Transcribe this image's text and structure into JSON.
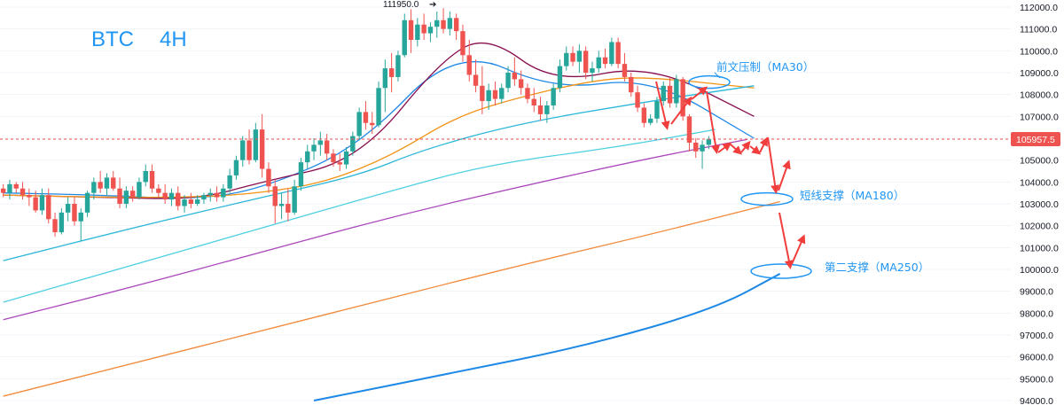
{
  "chart_data": {
    "type": "candlestick",
    "title_symbol": "BTC",
    "title_timeframe": "4H",
    "y_axis": {
      "min": 94000,
      "max": 112000,
      "step": 1000,
      "ticks": [
        "112000.0",
        "111000.0",
        "110000.0",
        "109000.0",
        "108000.0",
        "107000.0",
        "106000.0",
        "105000.0",
        "104000.0",
        "103000.0",
        "102000.0",
        "101000.0",
        "100000.0",
        "99000.0",
        "98000.0",
        "97000.0",
        "96000.0",
        "95000.0",
        "94000.0"
      ]
    },
    "current_price": 105957.5,
    "current_price_label": "105957.5",
    "high_marker": {
      "value": 111950,
      "label": "111950.0"
    },
    "candles": [
      [
        103700,
        103900,
        103300,
        103500
      ],
      [
        103500,
        104100,
        103200,
        103900
      ],
      [
        103900,
        104000,
        103500,
        103700
      ],
      [
        103700,
        104000,
        103200,
        103400
      ],
      [
        103400,
        103700,
        102900,
        103300
      ],
      [
        103300,
        103600,
        102600,
        102700
      ],
      [
        102700,
        103700,
        102500,
        103400
      ],
      [
        103400,
        103700,
        102100,
        102300
      ],
      [
        102300,
        102600,
        101500,
        101700
      ],
      [
        101700,
        102800,
        101600,
        102600
      ],
      [
        102600,
        103300,
        102200,
        103000
      ],
      [
        103000,
        103300,
        102000,
        102200
      ],
      [
        102200,
        102800,
        101300,
        102600
      ],
      [
        102600,
        103600,
        102400,
        103500
      ],
      [
        103500,
        104200,
        103200,
        104000
      ],
      [
        104000,
        104500,
        103500,
        103700
      ],
      [
        103700,
        104400,
        103400,
        104200
      ],
      [
        104200,
        104500,
        103600,
        103700
      ],
      [
        103700,
        104200,
        102800,
        103000
      ],
      [
        103000,
        103800,
        102800,
        103600
      ],
      [
        103600,
        103800,
        103100,
        103300
      ],
      [
        103300,
        104200,
        103200,
        104000
      ],
      [
        104000,
        104800,
        103800,
        104500
      ],
      [
        104500,
        104800,
        103500,
        103700
      ],
      [
        103700,
        103900,
        103300,
        103500
      ],
      [
        103500,
        103900,
        103000,
        103200
      ],
      [
        103200,
        103700,
        102900,
        103500
      ],
      [
        103500,
        103800,
        102700,
        102900
      ],
      [
        102900,
        103400,
        102600,
        103200
      ],
      [
        103200,
        103500,
        102800,
        103000
      ],
      [
        103000,
        103400,
        102900,
        103200
      ],
      [
        103200,
        103500,
        103000,
        103400
      ],
      [
        103400,
        103700,
        103100,
        103500
      ],
      [
        103500,
        103800,
        103100,
        103300
      ],
      [
        103300,
        103900,
        103100,
        103700
      ],
      [
        103700,
        104600,
        103500,
        104300
      ],
      [
        104300,
        105200,
        104100,
        105000
      ],
      [
        105000,
        106100,
        104700,
        105900
      ],
      [
        105900,
        106400,
        104800,
        105000
      ],
      [
        105000,
        106700,
        104900,
        106400
      ],
      [
        106400,
        107100,
        104200,
        104600
      ],
      [
        104600,
        104900,
        103500,
        103800
      ],
      [
        103800,
        104100,
        102100,
        102900
      ],
      [
        102900,
        103500,
        102300,
        103000
      ],
      [
        103000,
        103700,
        102200,
        102600
      ],
      [
        102600,
        104100,
        102500,
        103800
      ],
      [
        103800,
        105100,
        103600,
        104900
      ],
      [
        104900,
        105700,
        104600,
        105400
      ],
      [
        105400,
        106000,
        105000,
        105700
      ],
      [
        105700,
        106300,
        105200,
        105900
      ],
      [
        105900,
        106200,
        105000,
        105300
      ],
      [
        105300,
        105500,
        104700,
        104900
      ],
      [
        104900,
        105300,
        104500,
        104800
      ],
      [
        104800,
        105600,
        104600,
        105400
      ],
      [
        105400,
        106300,
        105200,
        106100
      ],
      [
        106100,
        107400,
        105900,
        107200
      ],
      [
        107200,
        107700,
        106400,
        106700
      ],
      [
        106700,
        107200,
        106200,
        106600
      ],
      [
        106600,
        108600,
        106500,
        108300
      ],
      [
        108300,
        109600,
        107200,
        109200
      ],
      [
        109200,
        109900,
        108100,
        108800
      ],
      [
        108800,
        110000,
        108600,
        109800
      ],
      [
        109800,
        111700,
        109700,
        111400
      ],
      [
        111400,
        111900,
        109900,
        110500
      ],
      [
        110500,
        111500,
        110200,
        111200
      ],
      [
        111200,
        111700,
        110500,
        110800
      ],
      [
        110800,
        111300,
        110400,
        111100
      ],
      [
        111100,
        111800,
        110600,
        111400
      ],
      [
        111400,
        111950,
        110800,
        111000
      ],
      [
        111000,
        111800,
        110700,
        111500
      ],
      [
        111500,
        111700,
        110500,
        110900
      ],
      [
        110900,
        111200,
        109500,
        109800
      ],
      [
        109800,
        110500,
        108600,
        108900
      ],
      [
        108900,
        109600,
        108100,
        108400
      ],
      [
        108400,
        109300,
        107100,
        107700
      ],
      [
        107700,
        108500,
        107300,
        108200
      ],
      [
        108200,
        108600,
        107500,
        107800
      ],
      [
        107800,
        108500,
        107600,
        108300
      ],
      [
        108300,
        109300,
        108100,
        109000
      ],
      [
        109000,
        109700,
        108400,
        108700
      ],
      [
        108700,
        109100,
        108000,
        108300
      ],
      [
        108300,
        108500,
        107600,
        107800
      ],
      [
        107800,
        108300,
        107200,
        107500
      ],
      [
        107500,
        107900,
        106800,
        107100
      ],
      [
        107100,
        107700,
        106700,
        107500
      ],
      [
        107500,
        108500,
        107300,
        108300
      ],
      [
        108300,
        109600,
        108100,
        109300
      ],
      [
        109300,
        110200,
        109100,
        109900
      ],
      [
        109900,
        110200,
        109300,
        109500
      ],
      [
        109500,
        110300,
        109000,
        110000
      ],
      [
        110000,
        110200,
        108700,
        109000
      ],
      [
        109000,
        109500,
        108600,
        109200
      ],
      [
        109200,
        110000,
        109000,
        109700
      ],
      [
        109700,
        110100,
        109200,
        109400
      ],
      [
        109400,
        110600,
        109300,
        110400
      ],
      [
        110400,
        110600,
        109200,
        109400
      ],
      [
        109400,
        109900,
        108600,
        108800
      ],
      [
        108800,
        109000,
        107900,
        108100
      ],
      [
        108100,
        108400,
        107200,
        107400
      ],
      [
        107400,
        107600,
        106500,
        106700
      ],
      [
        106700,
        107100,
        106600,
        106900
      ],
      [
        106900,
        107900,
        106700,
        107700
      ],
      [
        107700,
        108600,
        107500,
        108400
      ],
      [
        108400,
        108800,
        107400,
        107600
      ],
      [
        107600,
        108900,
        107400,
        108700
      ],
      [
        108700,
        108800,
        106800,
        107000
      ],
      [
        107000,
        107100,
        105400,
        105800
      ],
      [
        105800,
        106000,
        105100,
        105400
      ],
      [
        105400,
        105900,
        104600,
        105700
      ],
      [
        105700,
        106100,
        105500,
        105957.5
      ]
    ],
    "moving_averages": [
      {
        "name": "MA",
        "color": "#1e88e5",
        "points": [
          [
            0,
            103500
          ],
          [
            15,
            103400
          ],
          [
            30,
            103200
          ],
          [
            40,
            103700
          ],
          [
            55,
            105600
          ],
          [
            70,
            110200
          ],
          [
            85,
            108200
          ],
          [
            100,
            108800
          ],
          [
            116,
            106000
          ]
        ]
      },
      {
        "name": "MA",
        "color": "#880e4f",
        "points": [
          [
            0,
            103400
          ],
          [
            15,
            103300
          ],
          [
            30,
            103200
          ],
          [
            40,
            104000
          ],
          [
            55,
            105000
          ],
          [
            68,
            109700
          ],
          [
            75,
            110700
          ],
          [
            85,
            108500
          ],
          [
            100,
            109400
          ],
          [
            116,
            107000
          ]
        ]
      },
      {
        "name": "MA30",
        "color": "#f29417",
        "points": [
          [
            0,
            103400
          ],
          [
            15,
            103300
          ],
          [
            30,
            103300
          ],
          [
            40,
            103500
          ],
          [
            50,
            104000
          ],
          [
            60,
            105200
          ],
          [
            70,
            107000
          ],
          [
            80,
            107900
          ],
          [
            92,
            108700
          ],
          [
            100,
            108800
          ],
          [
            116,
            108300
          ]
        ]
      },
      {
        "name": "MA",
        "color": "#29b6d8",
        "points": [
          [
            0,
            100400
          ],
          [
            20,
            101900
          ],
          [
            40,
            103300
          ],
          [
            55,
            104300
          ],
          [
            65,
            105500
          ],
          [
            80,
            106700
          ],
          [
            100,
            107700
          ],
          [
            116,
            108400
          ]
        ]
      },
      {
        "name": "MA",
        "color": "#4dd0e1",
        "points": [
          [
            0,
            98500
          ],
          [
            20,
            100200
          ],
          [
            40,
            101900
          ],
          [
            60,
            103600
          ],
          [
            75,
            104800
          ],
          [
            95,
            105600
          ],
          [
            110,
            106400
          ]
        ]
      },
      {
        "name": "MA",
        "color": "#ab47bc",
        "points": [
          [
            0,
            97700
          ],
          [
            20,
            99200
          ],
          [
            40,
            100800
          ],
          [
            60,
            102400
          ],
          [
            80,
            103800
          ],
          [
            100,
            105100
          ],
          [
            115,
            105950
          ]
        ]
      },
      {
        "name": "MA180",
        "color": "#ef8a3c",
        "points": [
          [
            0,
            94200
          ],
          [
            20,
            95700
          ],
          [
            40,
            97200
          ],
          [
            60,
            98700
          ],
          [
            80,
            100200
          ],
          [
            100,
            101600
          ],
          [
            120,
            103100
          ]
        ]
      },
      {
        "name": "MA250",
        "color": "#1e88e5",
        "points": [
          [
            48,
            94000
          ],
          [
            70,
            95300
          ],
          [
            90,
            96500
          ],
          [
            110,
            98200
          ],
          [
            120,
            99800
          ]
        ]
      }
    ],
    "annotations": [
      {
        "id": "resistance",
        "text": "前文压制（MA30）",
        "price": 108650,
        "bar": 116
      },
      {
        "id": "support1",
        "text": "短线支撑（MA180）",
        "price": 103300,
        "bar": 125
      },
      {
        "id": "support2",
        "text": "第二支撑（MA250）",
        "price": 100000,
        "bar": 129
      }
    ],
    "colors": {
      "up": "#26a69a",
      "down": "#ef5350",
      "arrow": "#f23d3d",
      "annotation": "#2196f3",
      "grid": "#f0f3fa"
    }
  }
}
